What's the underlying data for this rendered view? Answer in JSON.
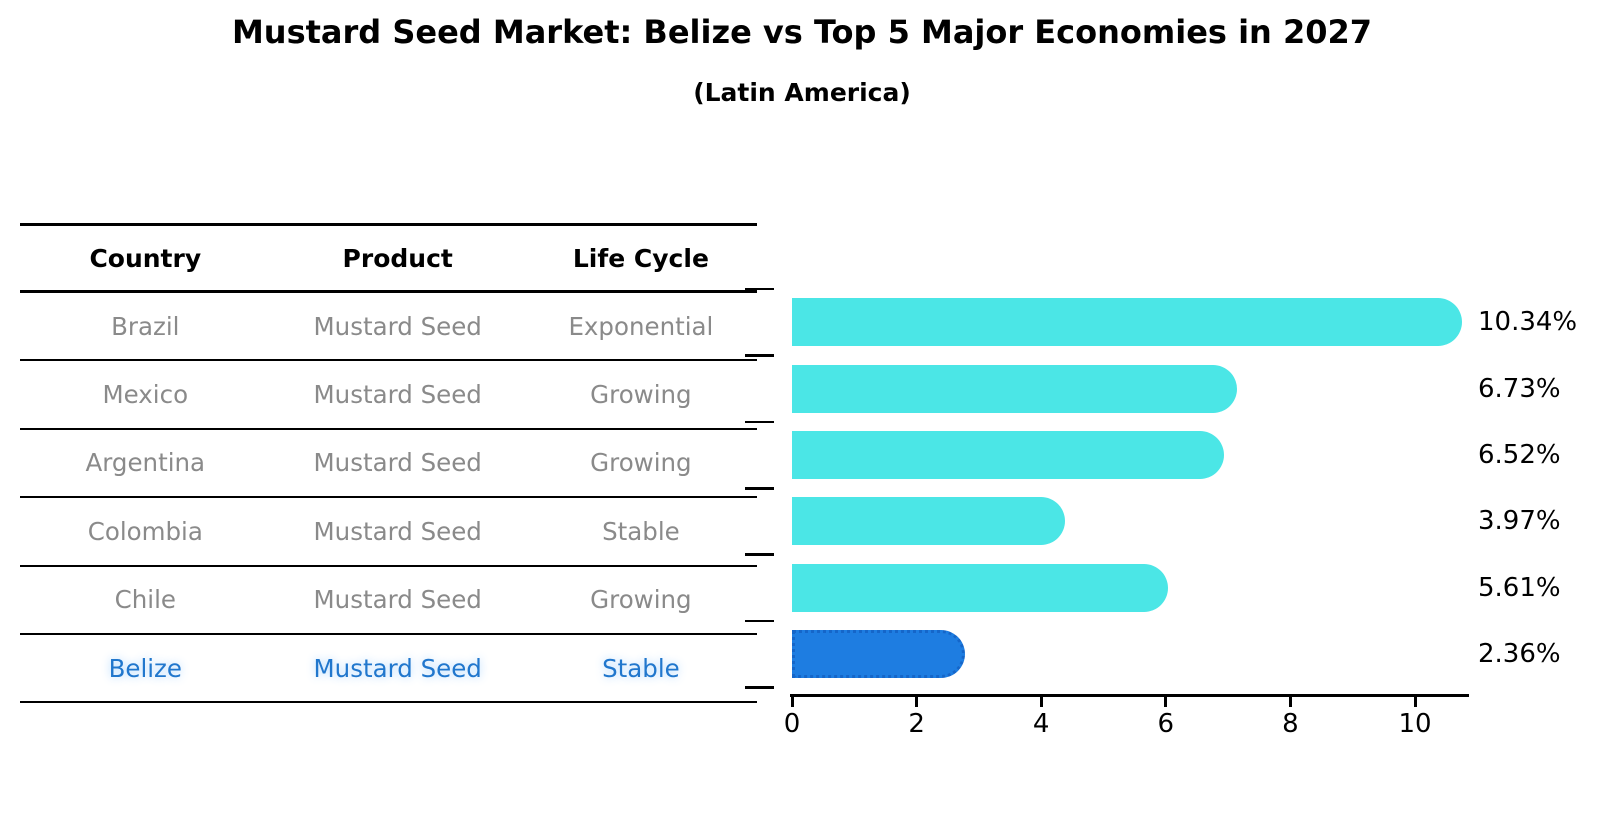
{
  "chart_data": {
    "type": "bar",
    "orientation": "horizontal",
    "title": "Mustard Seed Market: Belize vs Top 5 Major Economies in 2027",
    "subtitle": "(Latin America)",
    "categories": [
      "Brazil",
      "Mexico",
      "Argentina",
      "Colombia",
      "Chile",
      "Belize"
    ],
    "values": [
      10.34,
      6.73,
      6.52,
      3.97,
      5.61,
      2.36
    ],
    "value_labels": [
      "10.34%",
      "6.73%",
      "6.52%",
      "3.97%",
      "5.61%",
      "2.36%"
    ],
    "xlabel": "",
    "ylabel": "",
    "xlim": [
      0,
      11
    ],
    "x_ticks": [
      0,
      2,
      4,
      6,
      8,
      10
    ],
    "grid": false,
    "legend": false,
    "highlight_index": 5,
    "bar_color": "#4be6e6",
    "highlight_bar_color": "#1e7de1",
    "highlight_bar_border_color": "#1566c9"
  },
  "table": {
    "columns": [
      "Country",
      "Product",
      "Life Cycle"
    ],
    "rows": [
      {
        "country": "Brazil",
        "product": "Mustard Seed",
        "life_cycle": "Exponential",
        "highlight": false
      },
      {
        "country": "Mexico",
        "product": "Mustard Seed",
        "life_cycle": "Growing",
        "highlight": false
      },
      {
        "country": "Argentina",
        "product": "Mustard Seed",
        "life_cycle": "Growing",
        "highlight": false
      },
      {
        "country": "Colombia",
        "product": "Mustard Seed",
        "life_cycle": "Stable",
        "highlight": false
      },
      {
        "country": "Chile",
        "product": "Mustard Seed",
        "life_cycle": "Growing",
        "highlight": false
      },
      {
        "country": "Belize",
        "product": "Mustard Seed",
        "life_cycle": "Stable",
        "highlight": true
      }
    ]
  },
  "colors": {
    "text_black": "#000000",
    "text_gray": "#8a8a8a",
    "highlight_text_blue": "#2177cd",
    "axis_black": "#000000",
    "background": "#ffffff"
  }
}
